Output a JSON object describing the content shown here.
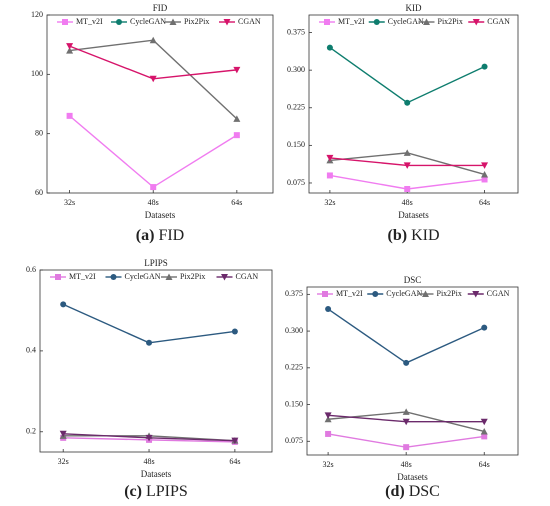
{
  "chart_data": [
    {
      "type": "line",
      "title": "FID",
      "x_label": "Datasets",
      "caption_label": "(a)",
      "caption": "FID",
      "categories": [
        "32s",
        "48s",
        "64s"
      ],
      "series": [
        {
          "name": "MT_v2I",
          "color": "#f07cf0",
          "values": [
            86,
            62,
            79.5
          ]
        },
        {
          "name": "CycleGAN",
          "color": "#0e7d6e",
          "values": [
            null,
            null,
            null
          ]
        },
        {
          "name": "Pix2Pix",
          "color": "#707070",
          "values": [
            108,
            111.5,
            85
          ]
        },
        {
          "name": "CGAN",
          "color": "#d6146a",
          "values": [
            109.5,
            98.5,
            101.5
          ]
        }
      ],
      "ylim": [
        60,
        120
      ],
      "yticks": [
        60,
        80,
        100,
        120
      ]
    },
    {
      "type": "line",
      "title": "KID",
      "x_label": "Datasets",
      "caption_label": "(b)",
      "caption": "KID",
      "categories": [
        "32s",
        "48s",
        "64s"
      ],
      "series": [
        {
          "name": "MT_v2I",
          "color": "#f07cf0",
          "values": [
            0.09,
            0.063,
            0.082
          ]
        },
        {
          "name": "CycleGAN",
          "color": "#0e7d6e",
          "values": [
            0.345,
            0.235,
            0.307
          ]
        },
        {
          "name": "Pix2Pix",
          "color": "#707070",
          "values": [
            0.12,
            0.135,
            0.092
          ]
        },
        {
          "name": "CGAN",
          "color": "#d6146a",
          "values": [
            0.125,
            0.11,
            0.11
          ]
        }
      ],
      "ylim": [
        0.055,
        0.41
      ],
      "yticks": [
        0.075,
        {
          "value": 0.15,
          "label": "0.150"
        },
        0.225,
        {
          "value": 0.3,
          "label": "0.300"
        },
        0.375
      ]
    },
    {
      "type": "line",
      "title": "LPIPS",
      "x_label": "Datasets",
      "caption_label": "(c)",
      "caption": "LPIPS",
      "categories": [
        "32s",
        "48s",
        "64s"
      ],
      "series": [
        {
          "name": "MT_v2I",
          "color": "#e07ae0",
          "values": [
            0.185,
            0.18,
            0.175
          ]
        },
        {
          "name": "CycleGAN",
          "color": "#2c5a80",
          "values": [
            0.515,
            0.42,
            0.448
          ]
        },
        {
          "name": "Pix2Pix",
          "color": "#707070",
          "values": [
            0.19,
            0.19,
            0.178
          ]
        },
        {
          "name": "CGAN",
          "color": "#6b2a6b",
          "values": [
            0.195,
            0.185,
            0.178
          ]
        }
      ],
      "ylim": [
        0.15,
        0.6
      ],
      "yticks": [
        0.2,
        0.4,
        0.6
      ]
    },
    {
      "type": "line",
      "title": "DSC",
      "x_label": "Datasets",
      "caption_label": "(d)",
      "caption": "DSC",
      "categories": [
        "32s",
        "48s",
        "64s"
      ],
      "series": [
        {
          "name": "MT_v2I",
          "color": "#e07ae0",
          "values": [
            0.09,
            0.063,
            0.085
          ]
        },
        {
          "name": "CycleGAN",
          "color": "#2c5a80",
          "values": [
            0.345,
            0.235,
            0.307
          ]
        },
        {
          "name": "Pix2Pix",
          "color": "#707070",
          "values": [
            0.12,
            0.135,
            0.095
          ]
        },
        {
          "name": "CGAN",
          "color": "#6b2a6b",
          "values": [
            0.128,
            0.115,
            0.115
          ]
        }
      ],
      "ylim": [
        0.047,
        0.39
      ],
      "yticks": [
        0.075,
        {
          "value": 0.15,
          "label": "0.150"
        },
        0.225,
        {
          "value": 0.3,
          "label": "0.300"
        },
        0.375
      ]
    }
  ]
}
